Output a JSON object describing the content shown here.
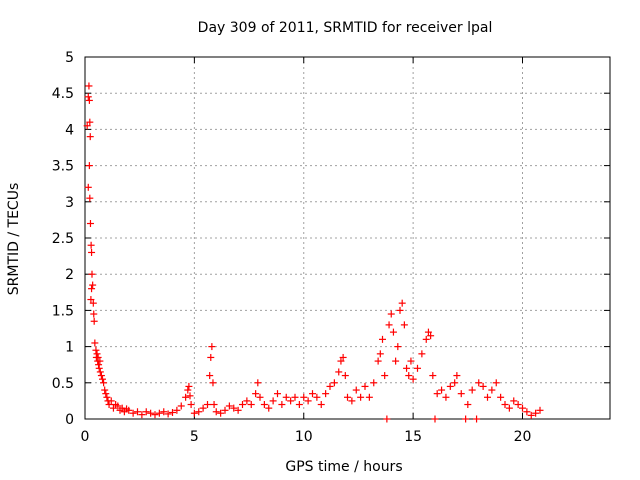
{
  "chart_data": {
    "type": "scatter",
    "title": "Day 309 of 2011, SRMTID for receiver lpal",
    "xlabel": "GPS time / hours",
    "ylabel": "SRMTID / TECUs",
    "xlim": [
      0,
      24
    ],
    "ylim": [
      0,
      5
    ],
    "xticks": [
      0,
      5,
      10,
      15,
      20
    ],
    "xtick_labels": [
      "0",
      "5",
      "10",
      "15",
      "20"
    ],
    "yticks": [
      0,
      0.5,
      1,
      1.5,
      2,
      2.5,
      3,
      3.5,
      4,
      4.5,
      5
    ],
    "ytick_labels": [
      "0",
      "0.5",
      "1",
      "1.5",
      "2",
      "2.5",
      "3",
      "3.5",
      "4",
      "4.5",
      "5"
    ],
    "grid": true,
    "marker": "plus",
    "marker_color": "#ff0000",
    "series": [
      {
        "name": "SRMTID",
        "points": [
          [
            0.1,
            4.05
          ],
          [
            0.15,
            4.45
          ],
          [
            0.18,
            4.6
          ],
          [
            0.2,
            4.4
          ],
          [
            0.22,
            4.1
          ],
          [
            0.24,
            3.9
          ],
          [
            0.2,
            3.5
          ],
          [
            0.15,
            3.2
          ],
          [
            0.22,
            3.05
          ],
          [
            0.25,
            2.7
          ],
          [
            0.28,
            2.4
          ],
          [
            0.3,
            2.3
          ],
          [
            0.32,
            2.0
          ],
          [
            0.35,
            1.85
          ],
          [
            0.3,
            1.8
          ],
          [
            0.27,
            1.65
          ],
          [
            0.38,
            1.6
          ],
          [
            0.4,
            1.45
          ],
          [
            0.42,
            1.35
          ],
          [
            0.45,
            1.05
          ],
          [
            0.5,
            0.95
          ],
          [
            0.52,
            0.85
          ],
          [
            0.55,
            0.9
          ],
          [
            0.58,
            0.8
          ],
          [
            0.6,
            0.85
          ],
          [
            0.62,
            0.75
          ],
          [
            0.65,
            0.7
          ],
          [
            0.68,
            0.8
          ],
          [
            0.7,
            0.65
          ],
          [
            0.75,
            0.6
          ],
          [
            0.8,
            0.55
          ],
          [
            0.85,
            0.5
          ],
          [
            0.9,
            0.4
          ],
          [
            0.95,
            0.35
          ],
          [
            1.0,
            0.3
          ],
          [
            1.05,
            0.25
          ],
          [
            1.1,
            0.2
          ],
          [
            1.2,
            0.25
          ],
          [
            1.3,
            0.15
          ],
          [
            1.4,
            0.2
          ],
          [
            1.5,
            0.18
          ],
          [
            1.6,
            0.12
          ],
          [
            1.7,
            0.15
          ],
          [
            1.8,
            0.1
          ],
          [
            1.9,
            0.14
          ],
          [
            2.0,
            0.12
          ],
          [
            2.2,
            0.08
          ],
          [
            2.4,
            0.1
          ],
          [
            2.6,
            0.06
          ],
          [
            2.8,
            0.1
          ],
          [
            3.0,
            0.08
          ],
          [
            3.2,
            0.06
          ],
          [
            3.4,
            0.08
          ],
          [
            3.6,
            0.1
          ],
          [
            3.8,
            0.07
          ],
          [
            4.0,
            0.09
          ],
          [
            4.2,
            0.12
          ],
          [
            4.4,
            0.18
          ],
          [
            4.6,
            0.3
          ],
          [
            4.7,
            0.4
          ],
          [
            4.75,
            0.45
          ],
          [
            4.8,
            0.32
          ],
          [
            4.85,
            0.2
          ],
          [
            5.0,
            0.08
          ],
          [
            5.2,
            0.1
          ],
          [
            5.4,
            0.15
          ],
          [
            5.6,
            0.2
          ],
          [
            5.7,
            0.6
          ],
          [
            5.75,
            0.85
          ],
          [
            5.8,
            1.0
          ],
          [
            5.85,
            0.5
          ],
          [
            5.9,
            0.2
          ],
          [
            6.0,
            0.1
          ],
          [
            6.2,
            0.08
          ],
          [
            6.4,
            0.12
          ],
          [
            6.6,
            0.18
          ],
          [
            6.8,
            0.15
          ],
          [
            7.0,
            0.12
          ],
          [
            7.2,
            0.2
          ],
          [
            7.4,
            0.25
          ],
          [
            7.6,
            0.2
          ],
          [
            7.8,
            0.35
          ],
          [
            7.9,
            0.5
          ],
          [
            8.0,
            0.3
          ],
          [
            8.2,
            0.2
          ],
          [
            8.4,
            0.15
          ],
          [
            8.6,
            0.25
          ],
          [
            8.8,
            0.35
          ],
          [
            9.0,
            0.2
          ],
          [
            9.2,
            0.3
          ],
          [
            9.4,
            0.25
          ],
          [
            9.6,
            0.3
          ],
          [
            9.8,
            0.2
          ],
          [
            10.0,
            0.3
          ],
          [
            10.2,
            0.25
          ],
          [
            10.4,
            0.35
          ],
          [
            10.6,
            0.3
          ],
          [
            10.8,
            0.2
          ],
          [
            11.0,
            0.35
          ],
          [
            11.2,
            0.45
          ],
          [
            11.4,
            0.5
          ],
          [
            11.6,
            0.65
          ],
          [
            11.7,
            0.8
          ],
          [
            11.8,
            0.85
          ],
          [
            11.9,
            0.6
          ],
          [
            12.0,
            0.3
          ],
          [
            12.2,
            0.25
          ],
          [
            12.4,
            0.4
          ],
          [
            12.6,
            0.3
          ],
          [
            12.8,
            0.45
          ],
          [
            13.0,
            0.3
          ],
          [
            13.2,
            0.5
          ],
          [
            13.4,
            0.8
          ],
          [
            13.5,
            0.9
          ],
          [
            13.6,
            1.1
          ],
          [
            13.7,
            0.6
          ],
          [
            13.8,
            0.0
          ],
          [
            13.9,
            1.3
          ],
          [
            14.0,
            1.45
          ],
          [
            14.1,
            1.2
          ],
          [
            14.2,
            0.8
          ],
          [
            14.3,
            1.0
          ],
          [
            14.4,
            1.5
          ],
          [
            14.5,
            1.6
          ],
          [
            14.6,
            1.3
          ],
          [
            14.7,
            0.7
          ],
          [
            14.8,
            0.6
          ],
          [
            14.9,
            0.8
          ],
          [
            15.0,
            0.55
          ],
          [
            15.2,
            0.7
          ],
          [
            15.4,
            0.9
          ],
          [
            15.6,
            1.1
          ],
          [
            15.7,
            1.2
          ],
          [
            15.8,
            1.15
          ],
          [
            15.9,
            0.6
          ],
          [
            16.0,
            0.0
          ],
          [
            16.1,
            0.35
          ],
          [
            16.3,
            0.4
          ],
          [
            16.5,
            0.3
          ],
          [
            16.7,
            0.45
          ],
          [
            16.9,
            0.5
          ],
          [
            17.0,
            0.6
          ],
          [
            17.2,
            0.35
          ],
          [
            17.4,
            0.0
          ],
          [
            17.5,
            0.2
          ],
          [
            17.7,
            0.4
          ],
          [
            17.9,
            0.0
          ],
          [
            18.0,
            0.5
          ],
          [
            18.2,
            0.45
          ],
          [
            18.4,
            0.3
          ],
          [
            18.6,
            0.4
          ],
          [
            18.8,
            0.5
          ],
          [
            19.0,
            0.3
          ],
          [
            19.2,
            0.2
          ],
          [
            19.4,
            0.15
          ],
          [
            19.6,
            0.25
          ],
          [
            19.8,
            0.2
          ],
          [
            20.0,
            0.15
          ],
          [
            20.2,
            0.1
          ],
          [
            20.4,
            0.05
          ],
          [
            20.6,
            0.08
          ],
          [
            20.8,
            0.12
          ]
        ]
      }
    ]
  }
}
